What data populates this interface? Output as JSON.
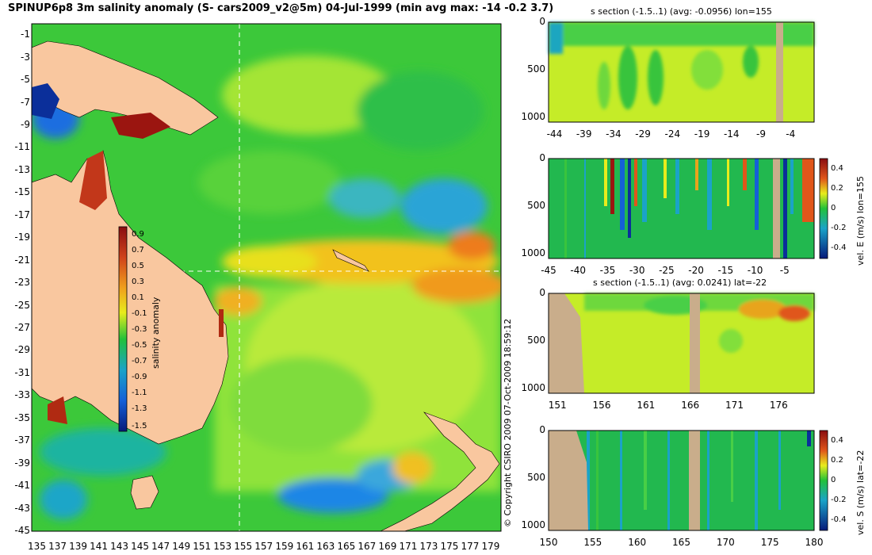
{
  "title": "SPINUP6p8 3m salinity anomaly (S- cars2009_v2@5m) 04-Jul-1999 (min avg max: -14 -0.2 3.7)",
  "copyright": "© Copyright CSIRO 2009   07-Oct-2009 18:59:12",
  "colors": {
    "land": "#f9c79f",
    "ocean_green": "#22c13a",
    "ocean_light": "#a8e832",
    "ocean_yellow": "#e8ec1c",
    "ocean_blue": "#1a8fe0",
    "deep_blue": "#0a2f9a",
    "red": "#9b1510",
    "section_land": "#c9ad8b"
  },
  "chart_data": [
    {
      "type": "heatmap",
      "name": "map",
      "colorbar_label": "salinity anomaly",
      "colorbar_ticks": [
        "0.9",
        "0.7",
        "0.5",
        "0.3",
        "0.1",
        "-0.1",
        "-0.3",
        "-0.5",
        "-0.7",
        "-0.9",
        "-1.1",
        "-1.3",
        "-1.5"
      ],
      "colorbar_range": [
        -1.5,
        0.9
      ],
      "x_ticks": [
        "135",
        "137",
        "139",
        "141",
        "143",
        "145",
        "147",
        "149",
        "151",
        "153",
        "155",
        "157",
        "159",
        "161",
        "163",
        "165",
        "167",
        "169",
        "171",
        "173",
        "175",
        "177",
        "179"
      ],
      "y_ticks": [
        "-1",
        "-3",
        "-5",
        "-7",
        "-9",
        "-11",
        "-13",
        "-15",
        "-17",
        "-19",
        "-21",
        "-23",
        "-25",
        "-27",
        "-29",
        "-31",
        "-33",
        "-35",
        "-37",
        "-39",
        "-41",
        "-43",
        "-45"
      ],
      "xlim": [
        134.5,
        180
      ],
      "ylim": [
        -45,
        0
      ],
      "section_lon": 155,
      "section_lat": -22
    },
    {
      "type": "heatmap",
      "name": "s-section-lon155",
      "title": "s section (-1.5..1) (avg: -0.0956) lon=155",
      "x_ticks": [
        "-44",
        "-39",
        "-34",
        "-29",
        "-24",
        "-19",
        "-14",
        "-9",
        "-4"
      ],
      "y_ticks": [
        "0",
        "500",
        "1000"
      ],
      "xlim": [
        -45,
        0
      ],
      "ylim": [
        1050,
        0
      ]
    },
    {
      "type": "heatmap",
      "name": "velE-section-lon155",
      "colorbar_label": "vel. E (m/s) lon=155",
      "colorbar_ticks": [
        "0.4",
        "0.2",
        "0",
        "-0.2",
        "-0.4"
      ],
      "x_ticks": [
        "-45",
        "-40",
        "-35",
        "-30",
        "-25",
        "-20",
        "-15",
        "-10",
        "-5"
      ],
      "y_ticks": [
        "0",
        "500",
        "1000"
      ],
      "xlim": [
        -45,
        0
      ],
      "ylim": [
        1050,
        0
      ]
    },
    {
      "type": "heatmap",
      "name": "s-section-lat-22",
      "title": "s section (-1.5..1) (avg: 0.0241) lat=-22",
      "x_ticks": [
        "151",
        "156",
        "161",
        "166",
        "171",
        "176"
      ],
      "y_ticks": [
        "0",
        "500",
        "1000"
      ],
      "xlim": [
        150,
        180
      ],
      "ylim": [
        1050,
        0
      ]
    },
    {
      "type": "heatmap",
      "name": "velS-section-lat-22",
      "colorbar_label": "vel. S (m/s) lat=-22",
      "colorbar_ticks": [
        "0.4",
        "0.2",
        "0",
        "-0.2",
        "-0.4"
      ],
      "x_ticks": [
        "150",
        "155",
        "160",
        "165",
        "170",
        "175",
        "180"
      ],
      "y_ticks": [
        "0",
        "500",
        "1000"
      ],
      "xlim": [
        150,
        180
      ],
      "ylim": [
        1050,
        0
      ]
    }
  ]
}
